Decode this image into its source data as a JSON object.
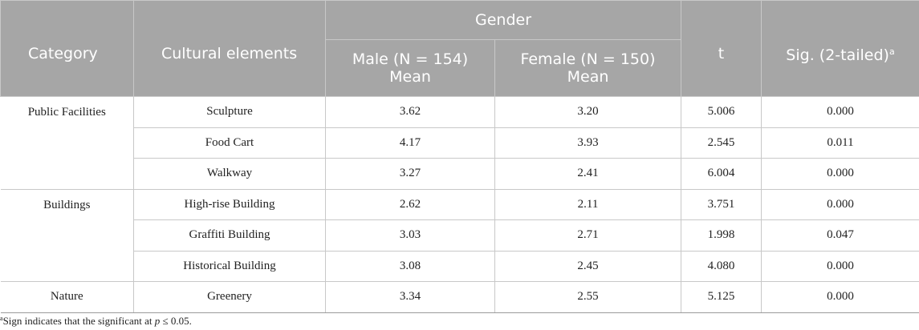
{
  "headers": {
    "category": "Category",
    "cultural_elements": "Cultural elements",
    "gender": "Gender",
    "t": "t",
    "sig": "Sig. (2-tailed)",
    "sig_sup": "a",
    "male": "Male (N = 154)",
    "male_sub": "Mean",
    "female": "Female (N = 150)",
    "female_sub": "Mean"
  },
  "groups": [
    {
      "category": "Public Facilities",
      "rows": [
        {
          "element": "Sculpture",
          "male": "3.62",
          "female": "3.20",
          "t": "5.006",
          "sig": "0.000"
        },
        {
          "element": "Food Cart",
          "male": "4.17",
          "female": "3.93",
          "t": "2.545",
          "sig": "0.011"
        },
        {
          "element": "Walkway",
          "male": "3.27",
          "female": "2.41",
          "t": "6.004",
          "sig": "0.000"
        }
      ]
    },
    {
      "category": "Buildings",
      "rows": [
        {
          "element": "High-rise Building",
          "male": "2.62",
          "female": "2.11",
          "t": "3.751",
          "sig": "0.000"
        },
        {
          "element": "Graffiti Building",
          "male": "3.03",
          "female": "2.71",
          "t": "1.998",
          "sig": "0.047"
        },
        {
          "element": "Historical Building",
          "male": "3.08",
          "female": "2.45",
          "t": "4.080",
          "sig": "0.000"
        }
      ]
    },
    {
      "category": "Nature",
      "rows": [
        {
          "element": "Greenery",
          "male": "3.34",
          "female": "2.55",
          "t": "5.125",
          "sig": "0.000"
        }
      ]
    }
  ],
  "footnote": {
    "sup": "a",
    "text_before": "Sign indicates that the significant at ",
    "p_symbol": "p",
    "text_after": " ≤ 0.05."
  }
}
